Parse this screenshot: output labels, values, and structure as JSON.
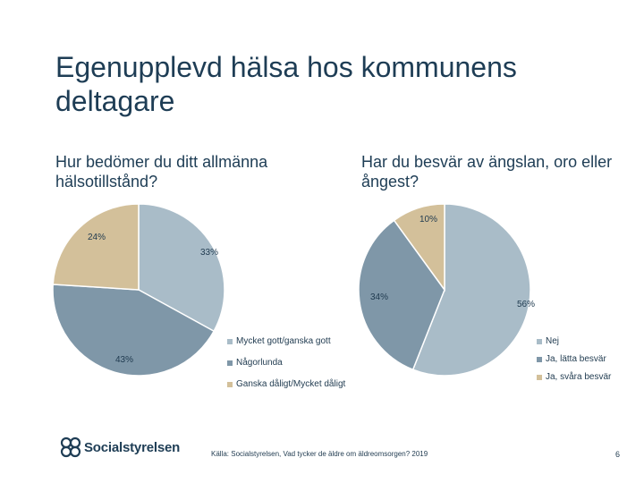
{
  "title": "Egenupplevd hälsa hos kommunens deltagare",
  "chart_data": [
    {
      "type": "pie",
      "title": "Hur bedömer du ditt allmänna hälsotillstånd?",
      "categories": [
        "Mycket gott/ganska gott",
        "Någorlunda",
        "Ganska dåligt/Mycket dåligt"
      ],
      "values": [
        33,
        43,
        24
      ],
      "labels": [
        "33%",
        "43%",
        "24%"
      ],
      "colors": [
        "#a9bcc8",
        "#7f97a8",
        "#d3c09a"
      ],
      "legend_position": "right"
    },
    {
      "type": "pie",
      "title": "Har du besvär av ängslan, oro eller ångest?",
      "categories": [
        "Nej",
        "Ja, lätta besvär",
        "Ja, svåra besvär"
      ],
      "values": [
        56,
        34,
        10
      ],
      "labels": [
        "56%",
        "34%",
        "10%"
      ],
      "colors": [
        "#a9bcc8",
        "#7f97a8",
        "#d3c09a"
      ],
      "legend_position": "right"
    }
  ],
  "footer": {
    "logo_text": "Socialstyrelsen",
    "source": "Källa: Socialstyrelsen, Vad tycker de äldre om äldreomsorgen? 2019",
    "page_number": "6"
  }
}
